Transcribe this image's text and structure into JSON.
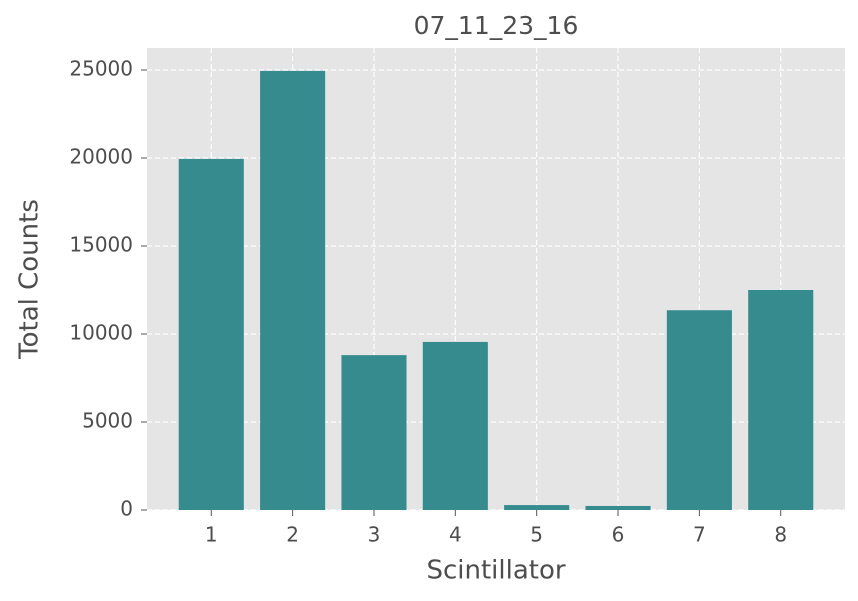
{
  "chart_data": {
    "type": "bar",
    "title": "07_11_23_16",
    "x_label": "Scintillator",
    "y_label": "Total Counts",
    "categories": [
      "1",
      "2",
      "3",
      "4",
      "5",
      "6",
      "7",
      "8"
    ],
    "values": [
      19950,
      24950,
      8800,
      9550,
      280,
      230,
      11350,
      12500
    ],
    "color": "#368b8f",
    "ylim": [
      0,
      26250
    ],
    "yticks": [
      0,
      5000,
      10000,
      15000,
      20000,
      25000
    ],
    "grid": true
  }
}
